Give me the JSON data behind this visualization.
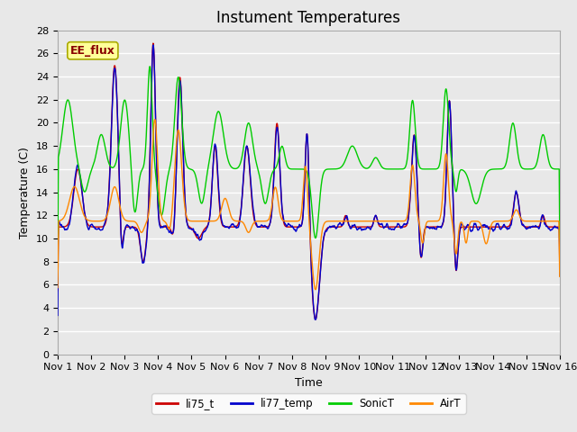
{
  "title": "Instument Temperatures",
  "xlabel": "Time",
  "ylabel": "Temperature (C)",
  "ylim": [
    0,
    28
  ],
  "xlim": [
    0,
    15
  ],
  "xtick_labels": [
    "Nov 1",
    "Nov 2",
    "Nov 3",
    "Nov 4",
    "Nov 5",
    "Nov 6",
    "Nov 7",
    "Nov 8",
    "Nov 9",
    "Nov 10",
    "Nov 11",
    "Nov 12",
    "Nov 13",
    "Nov 14",
    "Nov 15",
    "Nov 16"
  ],
  "ytick_values": [
    0,
    2,
    4,
    6,
    8,
    10,
    12,
    14,
    16,
    18,
    20,
    22,
    24,
    26,
    28
  ],
  "series": {
    "li75_t": {
      "color": "#cc0000",
      "linewidth": 1.0
    },
    "li77_temp": {
      "color": "#0000cc",
      "linewidth": 1.0
    },
    "SonicT": {
      "color": "#00cc00",
      "linewidth": 1.0
    },
    "AirT": {
      "color": "#ff8800",
      "linewidth": 1.0
    }
  },
  "legend_annotation": "EE_flux",
  "legend_annotation_color": "#880000",
  "legend_annotation_bg": "#ffff99",
  "legend_annotation_border": "#aaaa00",
  "background_color": "#e8e8e8",
  "grid_color": "#ffffff",
  "title_fontsize": 12,
  "axis_label_fontsize": 9,
  "tick_fontsize": 8
}
